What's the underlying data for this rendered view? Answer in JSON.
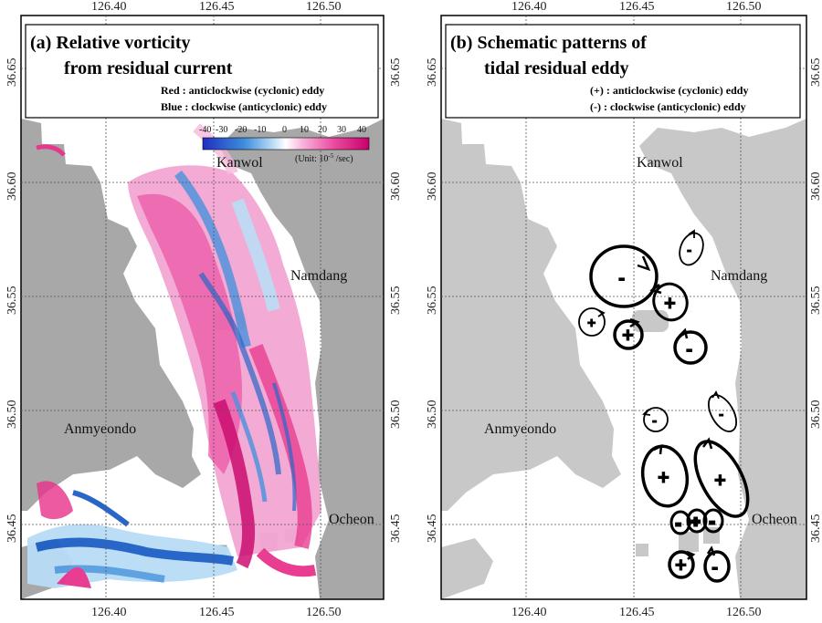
{
  "panel_a": {
    "title_line1": "(a) Relative vorticity",
    "title_line2": "from residual current",
    "legend_red": "Red  : anticlockwise (cyclonic) eddy",
    "legend_blue": "Blue : clockwise (anticyclonic) eddy",
    "colorbar": {
      "ticks": [
        "-40",
        "-30",
        "-20",
        "-10",
        "0",
        "10",
        "20",
        "30",
        "40"
      ],
      "unit_label": "(Unit: 10",
      "unit_exp": "-5",
      "unit_tail": " /sec)",
      "colors": [
        "#1f2fbf",
        "#3f8ddc",
        "#b8dcf5",
        "#ffffff",
        "#f7b4da",
        "#ec4fa2",
        "#c8006a"
      ]
    }
  },
  "panel_b": {
    "title_line1": "(b) Schematic patterns of",
    "title_line2": "tidal residual eddy",
    "legend_plus": "(+) : anticlockwise (cyclonic) eddy",
    "legend_minus": "(-)  : clockwise (anticyclonic) eddy"
  },
  "axes": {
    "x_ticks": [
      "126.40",
      "126.45",
      "126.50"
    ],
    "y_ticks": [
      "36.65",
      "36.60",
      "36.55",
      "36.50",
      "36.45"
    ]
  },
  "places": {
    "kanwol": "Kanwol",
    "namdang": "Namdang",
    "anmyeondo": "Anmyeondo",
    "ocheon": "Ocheon"
  },
  "eddy_signs": {
    "plus": "+",
    "minus": "-"
  },
  "colors": {
    "land_a": "#a8a8a8",
    "land_b": "#c8c8c8",
    "water": "#ffffff",
    "red_vorticity": "#e8338c",
    "blue_vorticity": "#1d5fc4"
  }
}
